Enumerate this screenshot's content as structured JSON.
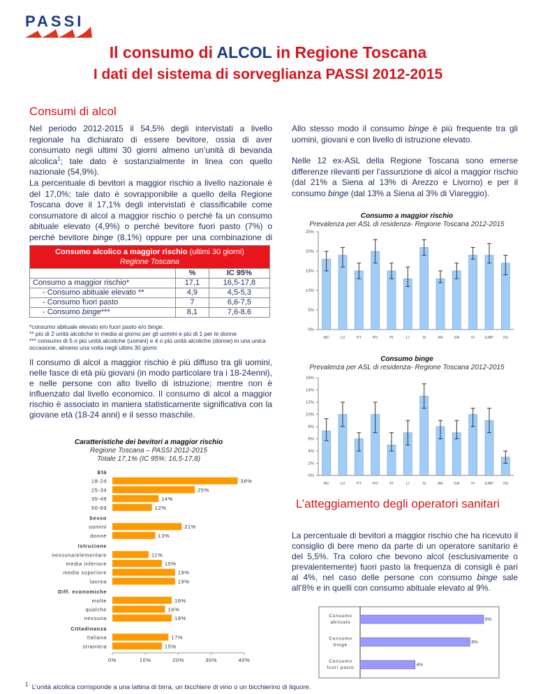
{
  "logo": {
    "text": "PASSI"
  },
  "header": {
    "title_pre": "Il consumo di ",
    "title_accent": "ALCOL",
    "title_post": " in Regione Toscana",
    "subtitle": "I dati del sistema di sorveglianza PASSI 2012-2015"
  },
  "section1": {
    "heading": "Consumi di alcol",
    "para1": [
      {
        "t": "Nel periodo 2012-2015 il 54,5% degli intervistati a livello regionale ha dichiarato di essere bevitore, ossia di aver consumato negli ultimi 30 giorni almeno un’unità di bevanda alcolica"
      },
      {
        "t": "1",
        "s": 1
      },
      {
        "t": "; tale dato è sostanzialmente in linea con quello nazionale (54,9%)."
      }
    ],
    "para2": [
      {
        "t": "La percentuale di bevitori a maggior rischio a livello nazionale è del 17,0%; tale dato è sovrapponibile a quello della Regione Toscana dove il 17,1% degli intervistati è classificabile come consumatore di alcol a maggior rischio o perché fa un consumo abituale elevato (4,9%) o perché bevitore fuori pasto (7%) o perché bevitore "
      },
      {
        "t": "binge",
        "i": 1
      },
      {
        "t": " (8,1%) oppure per una combinazione di queste tre modalità."
      }
    ],
    "para3": [
      {
        "t": "Il consumo di alcol a maggior rischio è più diffuso tra gli uomini, nelle fasce di età più giovani (in modo particolare tra i 18-24enni), e nelle persone con alto livello di istruzione; mentre non è influenzato dal livello economico. Il consumo di alcol a maggior rischio è associato in maniera statisticamente significativa con la giovane età (18-24 anni) e il sesso maschile."
      }
    ]
  },
  "table": {
    "title_bold": "Consumo alcolico a maggior rischio",
    "title_rest": " (ultimi 30 giorni)",
    "subtitle": "Regione Toscana",
    "col_pct": "%",
    "col_ic": "IC 95%",
    "rows": [
      {
        "label": [
          {
            "t": "Consumo a maggior rischio*"
          }
        ],
        "pct": "17,1",
        "ic": "16,5-17,8"
      },
      {
        "label": [
          {
            "t": "- Consumo abituale elevato **"
          }
        ],
        "pct": "4,9",
        "ic": "4,5-5,3"
      },
      {
        "label": [
          {
            "t": "- Consumo fuori pasto"
          }
        ],
        "pct": "7",
        "ic": "6,6-7,5"
      },
      {
        "label": [
          {
            "t": "- Consumo "
          },
          {
            "t": "binge",
            "i": 1
          },
          {
            "t": "***"
          }
        ],
        "pct": "8,1",
        "ic": "7,6-8,6"
      }
    ],
    "notes": [
      [
        {
          "t": "*consumo abituale elevato e/o fuori pasto e/o "
        },
        {
          "t": "binge",
          "i": 1
        },
        {
          "t": "."
        }
      ],
      [
        {
          "t": "** più di 2 unità alcoliche in media al giorno per gli uomini e più di 1 per le donne"
        }
      ],
      [
        {
          "t": "*** consumo di 5 o più unità alcoliche (uomini) e 4 o più unità alcoliche (donne) in una unica occasione, almeno una volta negli ultimi 30 giorni"
        }
      ]
    ]
  },
  "right": {
    "para1": [
      {
        "t": "Allo stesso modo il consumo "
      },
      {
        "t": "binge",
        "i": 1
      },
      {
        "t": " è più frequente tra gli uomini, giovani e con livello di istruzione elevato."
      }
    ],
    "para2": [
      {
        "t": "Nelle 12 ex-ASL della Regione Toscana sono emerse differenze rilevanti per l’assunzione di alcol a maggior rischio (dal 21% a Siena al 13% di Arezzo e Livorno) e per il consumo "
      },
      {
        "t": "binge",
        "i": 1
      },
      {
        "t": " (dal 13% a Siena al 3% di Viareggio)."
      }
    ],
    "heading2": "L’atteggiamento degli operatori sanitari",
    "para3": [
      {
        "t": "La percentuale di bevitori a maggior rischio che ha ricevuto il consiglio di bere meno da parte di un operatore sanitario è del 5,5%. Tra coloro che bevono alcol (esclusivamente o prevalentemente) fuori pasto la frequenza di consigli è pari al 4%, nel caso delle persone con consumo "
      },
      {
        "t": "binge",
        "i": 1
      },
      {
        "t": " sale all’8% e in quelli con consumo abituale elevato al 9%."
      }
    ]
  },
  "footnote": {
    "num": "1",
    "text": "L’unità alcolica corrisponde a una lattina di birra, un bicchiere di vino o un bicchierino di liquore."
  },
  "chart_data": [
    {
      "type": "bar",
      "title": "Consumo a maggior rischio",
      "subtitle": "Prevalenza per ASL di residenza- Regione Toscana 2012-2015",
      "categories": [
        "MC",
        "LU",
        "PT",
        "PO",
        "PI",
        "LI",
        "SI",
        "AR",
        "GR",
        "FI",
        "EMP",
        "VG"
      ],
      "values": [
        18,
        19,
        15,
        20,
        15,
        13,
        21,
        13,
        15,
        19,
        19,
        17
      ],
      "ci_low": [
        15,
        16,
        13,
        17,
        13,
        11,
        19,
        12,
        13,
        18,
        17,
        14
      ],
      "ci_high": [
        20,
        21,
        17,
        23,
        17,
        16,
        23,
        15,
        17,
        21,
        22,
        19
      ],
      "ylim": [
        0,
        25
      ],
      "yticks": [
        "0%",
        "5%",
        "10%",
        "15%",
        "20%",
        "25%"
      ],
      "color": "#9fcdf8"
    },
    {
      "type": "bar",
      "title": "Consumo binge",
      "subtitle": "Prevalenza per ASL di residenza- Regione Toscana 2012-2015",
      "categories": [
        "MC",
        "LU",
        "PT",
        "PO",
        "PI",
        "LI",
        "SI",
        "AR",
        "GR",
        "FI",
        "EMP",
        "VG"
      ],
      "values": [
        7.3,
        10,
        6,
        10,
        5,
        7,
        13,
        8,
        7,
        10,
        9,
        3
      ],
      "ci_low": [
        5.7,
        8,
        4,
        7,
        4,
        5,
        11,
        6,
        6,
        8,
        7,
        2
      ],
      "ci_high": [
        9.3,
        12,
        7,
        12,
        7,
        9,
        15,
        9,
        9,
        11,
        11,
        4
      ],
      "ylim": [
        0,
        16
      ],
      "yticks": [
        "0%",
        "2%",
        "4%",
        "6%",
        "8%",
        "10%",
        "12%",
        "14%",
        "16%"
      ],
      "color": "#9fcdf8"
    },
    {
      "type": "bar",
      "orientation": "horizontal",
      "title": "Caratteristiche dei bevitori a maggior rischio",
      "subtitle": "Regione Toscana – PASSI 2012-2015",
      "subtitle2": "Totale 17,1% (IC 95%: 16,5-17,8)",
      "groups": [
        {
          "name": "Età",
          "items": [
            {
              "label": "18-24",
              "value": 38
            },
            {
              "label": "25-34",
              "value": 25
            },
            {
              "label": "35-49",
              "value": 14
            },
            {
              "label": "50-69",
              "value": 12
            }
          ]
        },
        {
          "name": "Sesso",
          "items": [
            {
              "label": "uomini",
              "value": 21
            },
            {
              "label": "donne",
              "value": 13
            }
          ]
        },
        {
          "name": "Istruzione",
          "items": [
            {
              "label": "nessuna/elementare",
              "value": 11
            },
            {
              "label": "media inferiore",
              "value": 15
            },
            {
              "label": "media superiore",
              "value": 19
            },
            {
              "label": "laurea",
              "value": 19
            }
          ]
        },
        {
          "name": "Diff. economiche",
          "items": [
            {
              "label": "molte",
              "value": 18
            },
            {
              "label": "qualche",
              "value": 16
            },
            {
              "label": "nessuna",
              "value": 18
            }
          ]
        },
        {
          "name": "Cittadinanza",
          "items": [
            {
              "label": "italiana",
              "value": 17
            },
            {
              "label": "straniera",
              "value": 15
            }
          ]
        }
      ],
      "xlim": [
        0,
        40
      ],
      "xticks": [
        "0%",
        "10%",
        "20%",
        "30%",
        "40%"
      ],
      "color": "#ff9900"
    },
    {
      "type": "bar",
      "orientation": "horizontal",
      "categories": [
        "Consumo abituale",
        "Consumo binge",
        "Consumo fuori pasto"
      ],
      "values": [
        9,
        8,
        4
      ],
      "labels": [
        "9%",
        "8%",
        "4%"
      ],
      "color": "#9999ff"
    }
  ]
}
